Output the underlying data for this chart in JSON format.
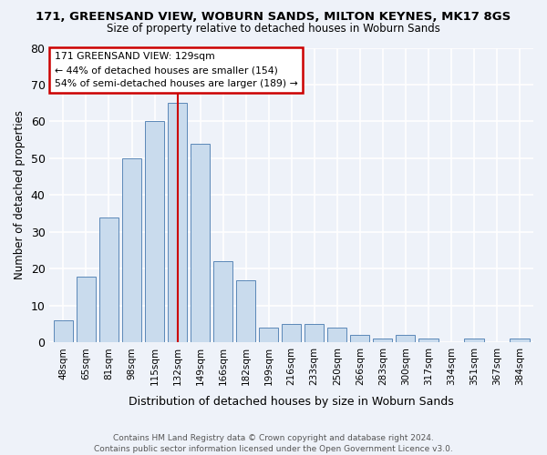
{
  "title1": "171, GREENSAND VIEW, WOBURN SANDS, MILTON KEYNES, MK17 8GS",
  "title2": "Size of property relative to detached houses in Woburn Sands",
  "xlabel": "Distribution of detached houses by size in Woburn Sands",
  "ylabel": "Number of detached properties",
  "footer1": "Contains HM Land Registry data © Crown copyright and database right 2024.",
  "footer2": "Contains public sector information licensed under the Open Government Licence v3.0.",
  "categories": [
    "48sqm",
    "65sqm",
    "81sqm",
    "98sqm",
    "115sqm",
    "132sqm",
    "149sqm",
    "166sqm",
    "182sqm",
    "199sqm",
    "216sqm",
    "233sqm",
    "250sqm",
    "266sqm",
    "283sqm",
    "300sqm",
    "317sqm",
    "334sqm",
    "351sqm",
    "367sqm",
    "384sqm"
  ],
  "values": [
    6,
    18,
    34,
    50,
    60,
    65,
    54,
    22,
    17,
    4,
    5,
    5,
    4,
    2,
    1,
    2,
    1,
    0,
    1,
    0,
    1
  ],
  "bar_color": "#c9dbed",
  "bar_edge_color": "#5b88b8",
  "background_color": "#eef2f9",
  "grid_color": "#ffffff",
  "red_line_index": 5,
  "annotation_text1": "171 GREENSAND VIEW: 129sqm",
  "annotation_text2": "← 44% of detached houses are smaller (154)",
  "annotation_text3": "54% of semi-detached houses are larger (189) →",
  "annotation_box_color": "#ffffff",
  "annotation_box_edge": "#cc0000",
  "ylim": [
    0,
    80
  ],
  "yticks": [
    0,
    10,
    20,
    30,
    40,
    50,
    60,
    70,
    80
  ]
}
